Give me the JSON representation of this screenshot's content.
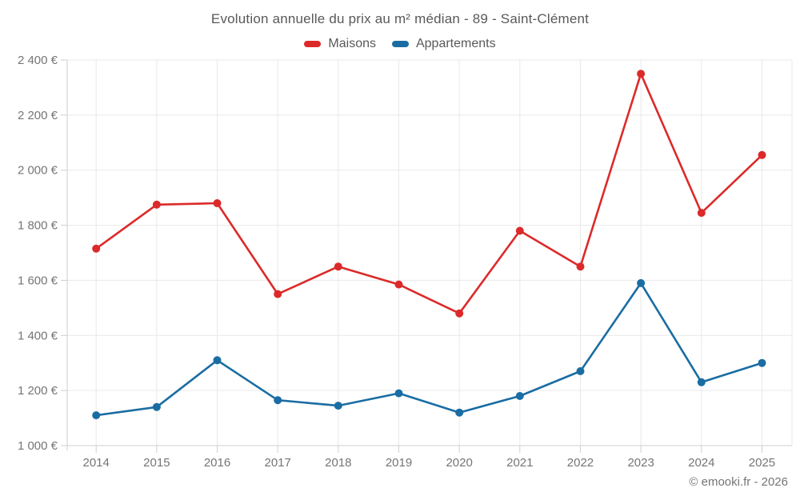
{
  "header": {
    "title": "Evolution annuelle du prix au m² médian - 89 - Saint-Clément"
  },
  "footer": {
    "credit": "© emooki.fr - 2026"
  },
  "colors": {
    "maisons": "#dc2a2a",
    "appartements": "#1a6da3",
    "grid": "#e9e9e9",
    "axis": "#cfcfcf",
    "tick_label": "#757575",
    "title_text": "#595959"
  },
  "chart_data": {
    "type": "line",
    "title": "Evolution annuelle du prix au m² médian - 89 - Saint-Clément",
    "categories": [
      "2014",
      "2015",
      "2016",
      "2017",
      "2018",
      "2019",
      "2020",
      "2021",
      "2022",
      "2023",
      "2024",
      "2025"
    ],
    "series": [
      {
        "name": "Maisons",
        "color": "#dc2a2a",
        "values": [
          1715,
          1875,
          1880,
          1550,
          1650,
          1585,
          1480,
          1780,
          1650,
          2350,
          1845,
          2055
        ]
      },
      {
        "name": "Appartements",
        "color": "#1a6da3",
        "values": [
          1110,
          1140,
          1310,
          1165,
          1145,
          1190,
          1120,
          1180,
          1270,
          1590,
          1230,
          1300
        ]
      }
    ],
    "xlabel": "",
    "ylabel": "",
    "ylim": [
      1000,
      2400
    ],
    "ytick_step": 200,
    "ytick_suffix": " €",
    "grid": true,
    "legend_position": "top",
    "marker": "circle"
  }
}
